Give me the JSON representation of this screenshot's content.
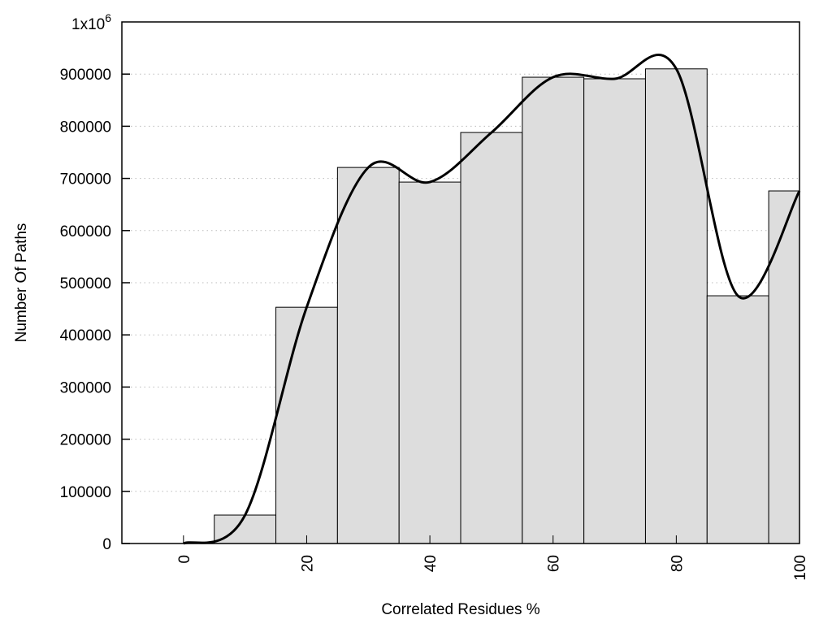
{
  "chart_data": {
    "type": "bar",
    "title": "",
    "xlabel": "Correlated Residues %",
    "ylabel": "Number Of Paths",
    "xlim": [
      -10,
      100
    ],
    "ylim": [
      0,
      1000000
    ],
    "bar_width": 10,
    "grid": "horizontal dotted",
    "x_ticks": [
      0,
      20,
      40,
      60,
      80,
      100
    ],
    "x_tick_labels": [
      "0",
      "20",
      "40",
      "60",
      "80",
      "100"
    ],
    "y_ticks": [
      0,
      100000,
      200000,
      300000,
      400000,
      500000,
      600000,
      700000,
      800000,
      900000
    ],
    "y_tick_labels": [
      "0",
      "100000",
      "200000",
      "300000",
      "400000",
      "500000",
      "600000",
      "700000",
      "800000",
      "900000"
    ],
    "y_top_label": {
      "base": "1x10",
      "exp": "6"
    },
    "x": [
      0,
      10,
      20,
      30,
      40,
      50,
      60,
      70,
      80,
      90,
      100
    ],
    "values": [
      0,
      54500,
      453000,
      721000,
      693000,
      788000,
      894000,
      891000,
      910000,
      475000,
      676000
    ],
    "bar_color": "#dddddd",
    "curve": {
      "type": "smooth line",
      "color": "#000000"
    }
  }
}
